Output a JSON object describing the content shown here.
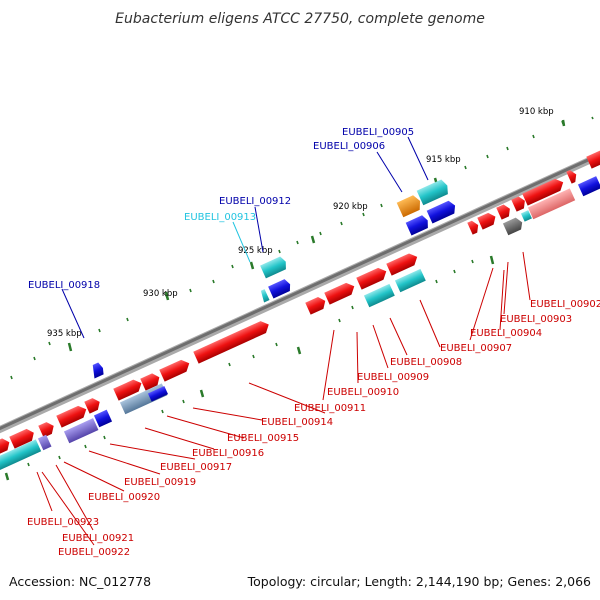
{
  "title": "Eubacterium eligens ATCC 27750, complete genome",
  "footer": {
    "accession": "Accession: NC_012778",
    "summary": "Topology: circular; Length: 2,144,190 bp; Genes: 2,066"
  },
  "tick_labels": [
    "910 kbp",
    "915 kbp",
    "920 kbp",
    "925 kbp",
    "930 kbp",
    "935 kbp"
  ],
  "gene_labels": [
    {
      "text": "EUBELI_00905",
      "color": "#0000aa"
    },
    {
      "text": "EUBELI_00906",
      "color": "#0000aa"
    },
    {
      "text": "EUBELI_00912",
      "color": "#0000aa"
    },
    {
      "text": "EUBELI_00913",
      "color": "#22c4e0"
    },
    {
      "text": "EUBELI_00918",
      "color": "#0000aa"
    },
    {
      "text": "EUBELI_00902",
      "color": "#cc0000"
    },
    {
      "text": "EUBELI_00903",
      "color": "#cc0000"
    },
    {
      "text": "EUBELI_00904",
      "color": "#cc0000"
    },
    {
      "text": "EUBELI_00907",
      "color": "#cc0000"
    },
    {
      "text": "EUBELI_00908",
      "color": "#cc0000"
    },
    {
      "text": "EUBELI_00909",
      "color": "#cc0000"
    },
    {
      "text": "EUBELI_00910",
      "color": "#cc0000"
    },
    {
      "text": "EUBELI_00911",
      "color": "#cc0000"
    },
    {
      "text": "EUBELI_00914",
      "color": "#cc0000"
    },
    {
      "text": "EUBELI_00915",
      "color": "#cc0000"
    },
    {
      "text": "EUBELI_00916",
      "color": "#cc0000"
    },
    {
      "text": "EUBELI_00917",
      "color": "#cc0000"
    },
    {
      "text": "EUBELI_00919",
      "color": "#cc0000"
    },
    {
      "text": "EUBELI_00920",
      "color": "#cc0000"
    },
    {
      "text": "EUBELI_00921",
      "color": "#cc0000"
    },
    {
      "text": "EUBELI_00922",
      "color": "#cc0000"
    },
    {
      "text": "EUBELI_00923",
      "color": "#cc0000"
    }
  ],
  "colors": {
    "forward_gene": "#ee1111",
    "reverse_gene": "#1111dd",
    "cyan_gene": "#22c4c8",
    "orange_gene": "#ee8800",
    "pink_gene": "#f08080",
    "gray_gene": "#666666",
    "purple_gene": "#7766cc",
    "backbone": "#7a7a7a",
    "tick": "#2a7a2a"
  }
}
